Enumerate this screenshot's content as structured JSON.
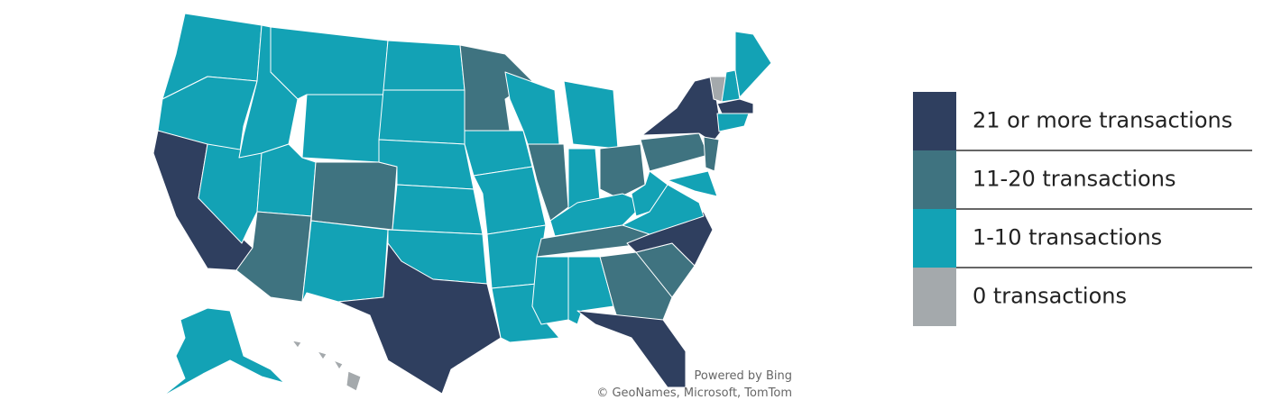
{
  "legend": {
    "items": [
      {
        "label": "21 or more transactions",
        "color": "#2f3f5f"
      },
      {
        "label": "11-20 transactions",
        "color": "#3f7380"
      },
      {
        "label": "1-10 transactions",
        "color": "#13a2b5"
      },
      {
        "label": "0 transactions",
        "color": "#a4a9ac"
      }
    ]
  },
  "attribution": {
    "provider": "Powered by Bing",
    "credits": "© GeoNames, Microsoft, TomTom"
  }
}
